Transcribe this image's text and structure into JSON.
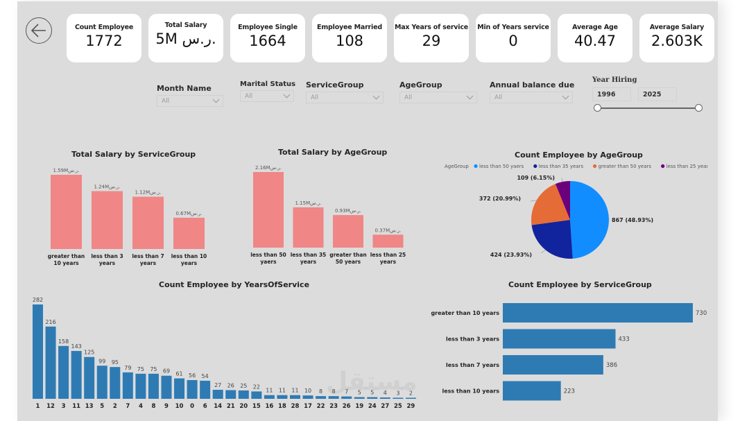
{
  "navigation": {
    "back_icon": "arrow-left-circle-icon"
  },
  "kpis": [
    {
      "label": "Count Employee",
      "value": "1772"
    },
    {
      "label": "Total Salary",
      "value": "5M ر.س."
    },
    {
      "label": "Employee Single",
      "value": "1664"
    },
    {
      "label": "Employee Married",
      "value": "108"
    },
    {
      "label": "Max Years of service",
      "value": "29"
    },
    {
      "label": "Min of Years service",
      "value": "0"
    },
    {
      "label": "Average Age",
      "value": "40.47"
    },
    {
      "label": "Average Salary",
      "value": "2.603K"
    }
  ],
  "slicers": [
    {
      "title": "Month Name",
      "value": "All"
    },
    {
      "title": "Marital Status",
      "value": "All"
    },
    {
      "title": "ServiceGroup",
      "value": "All"
    },
    {
      "title": "AgeGroup",
      "value": "All"
    },
    {
      "title": "Annual balance due",
      "value": "All"
    }
  ],
  "year_hiring": {
    "title": "Year Hiring",
    "start": "1996",
    "end": "2025",
    "min": 1996,
    "max": 2025
  },
  "watermark": "مستقل",
  "colors": {
    "salary_bar": "#f08686",
    "count_bar": "#2e7bb4",
    "pie": [
      "#118dff",
      "#12239e",
      "#e66c37",
      "#6b007b"
    ]
  },
  "chart_data": [
    {
      "id": "salary_by_servicegroup",
      "type": "bar",
      "title": "Total Salary by ServiceGroup",
      "categories": [
        "greater than 10 years",
        "less than 3 years",
        "less than 7 years",
        "less than 10 years"
      ],
      "category_lines": [
        [
          "greater than",
          "10 years"
        ],
        [
          "less than 3",
          "years"
        ],
        [
          "less than 7",
          "years"
        ],
        [
          "less than 10",
          "years"
        ]
      ],
      "values": [
        1.59,
        1.24,
        1.12,
        0.67
      ],
      "data_labels": [
        "1.59Mر.س.",
        "1.24Mر.س.",
        "1.12Mر.س.",
        "0.67Mر.س."
      ],
      "unit": "M SAR",
      "ylim": [
        0,
        1.59
      ]
    },
    {
      "id": "salary_by_agegroup",
      "type": "bar",
      "title": "Total Salary by AgeGroup",
      "categories": [
        "less than 50 yaers",
        "less than 35 years",
        "greater than 50 years",
        "less than 25 years"
      ],
      "category_lines": [
        [
          "less than 50",
          "yaers"
        ],
        [
          "less than 35",
          "years"
        ],
        [
          "greater than",
          "50 years"
        ],
        [
          "less than 25",
          "years"
        ]
      ],
      "values": [
        2.16,
        1.15,
        0.93,
        0.37
      ],
      "data_labels": [
        "2.16Mر.س.",
        "1.15Mر.س.",
        "0.93Mر.س.",
        "0.37Mر.س."
      ],
      "unit": "M SAR",
      "ylim": [
        0,
        2.16
      ]
    },
    {
      "id": "count_by_agegroup",
      "type": "pie",
      "title": "Count Employee by AgeGroup",
      "legend_title": "AgeGroup",
      "legend_position": "top",
      "slices": [
        {
          "label": "less than 50 yaers",
          "value": 867,
          "percent": "48.93%"
        },
        {
          "label": "less than 35 years",
          "value": 424,
          "percent": "23.93%"
        },
        {
          "label": "greater than 50 years",
          "value": 372,
          "percent": "20.99%"
        },
        {
          "label": "less than 25 years",
          "value": 109,
          "percent": "6.15%"
        }
      ]
    },
    {
      "id": "count_by_yearsofservice",
      "type": "bar",
      "title": "Count Employee by YearsOfService",
      "categories": [
        "1",
        "12",
        "3",
        "11",
        "13",
        "5",
        "2",
        "7",
        "4",
        "8",
        "9",
        "10",
        "0",
        "6",
        "14",
        "21",
        "20",
        "15",
        "16",
        "18",
        "28",
        "17",
        "22",
        "23",
        "26",
        "19",
        "24",
        "27",
        "25",
        "29"
      ],
      "values": [
        282,
        216,
        158,
        143,
        125,
        99,
        95,
        79,
        75,
        75,
        69,
        61,
        56,
        54,
        27,
        26,
        25,
        22,
        11,
        11,
        11,
        10,
        8,
        8,
        7,
        5,
        5,
        4,
        3,
        2
      ],
      "ylim": [
        0,
        282
      ]
    },
    {
      "id": "count_by_servicegroup",
      "type": "bar",
      "orientation": "horizontal",
      "title": "Count Employee by ServiceGroup",
      "categories": [
        "greater than 10 years",
        "less than 3 years",
        "less than 7 years",
        "less than 10 years"
      ],
      "values": [
        730,
        433,
        386,
        223
      ],
      "xlim": [
        0,
        730
      ]
    }
  ]
}
